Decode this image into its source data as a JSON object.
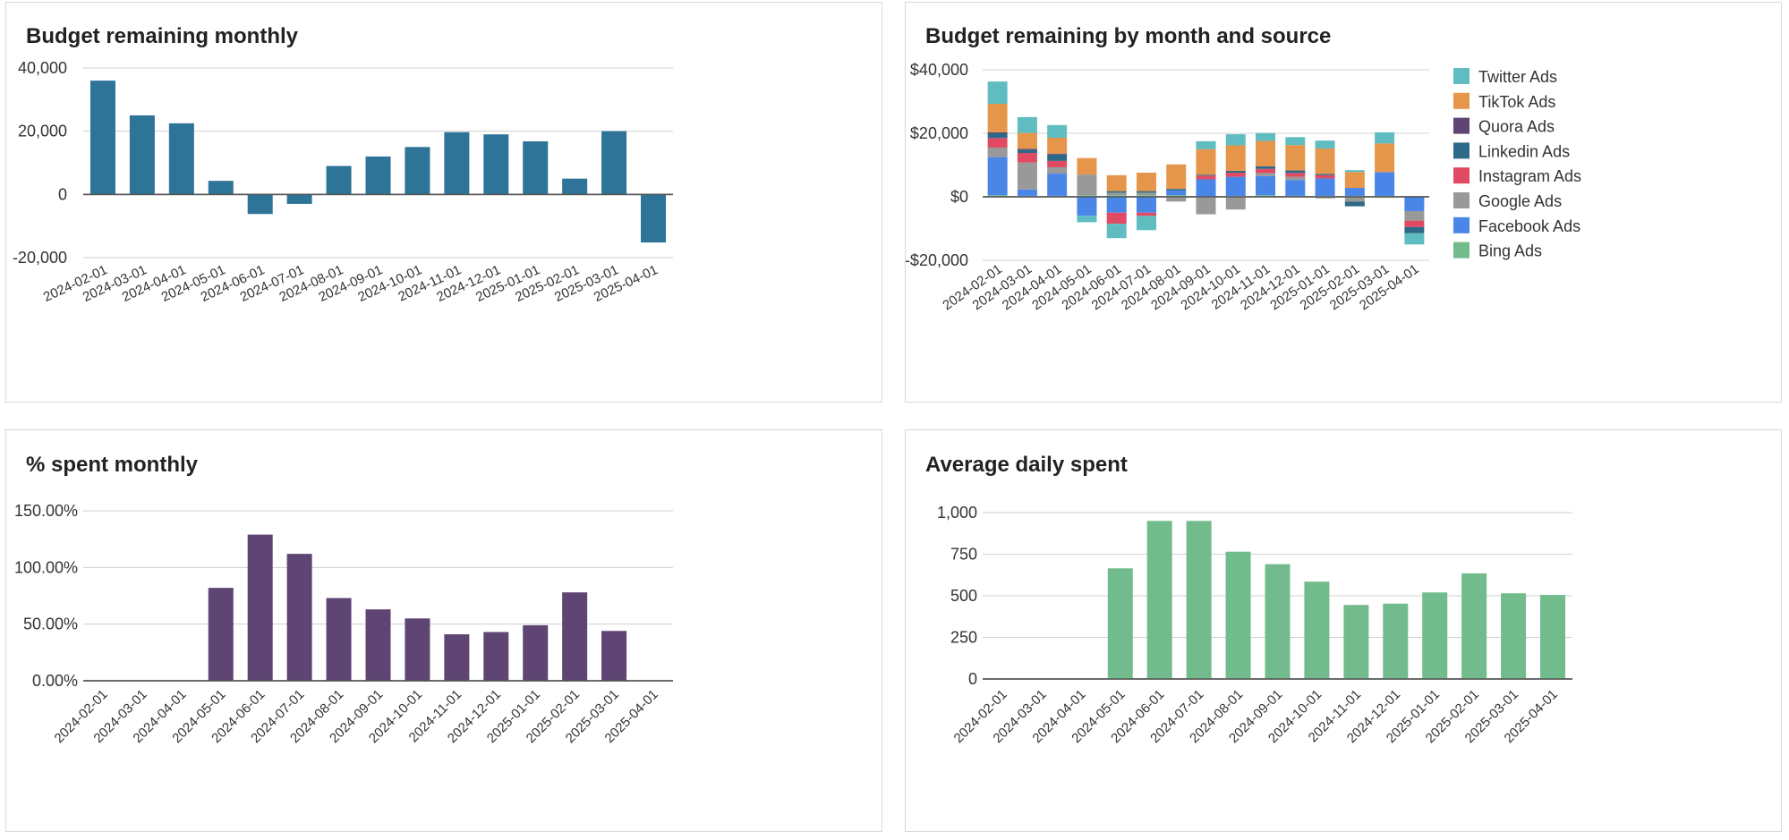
{
  "chart_data": [
    {
      "type": "bar",
      "title": "Budget remaining monthly",
      "categories": [
        "2024-02-01",
        "2024-03-01",
        "2024-04-01",
        "2024-05-01",
        "2024-06-01",
        "2024-07-01",
        "2024-08-01",
        "2024-09-01",
        "2024-10-01",
        "2024-11-01",
        "2024-12-01",
        "2025-01-01",
        "2025-02-01",
        "2025-03-01",
        "2025-04-01"
      ],
      "values": [
        36000,
        25000,
        22500,
        4300,
        -6200,
        -3000,
        9000,
        12000,
        15000,
        19700,
        19000,
        16800,
        5000,
        20000,
        -15200
      ],
      "yticks": [
        -20000,
        0,
        20000,
        40000
      ],
      "ytick_labels": [
        "-20,000",
        "0",
        "20,000",
        "40,000"
      ],
      "ylim": [
        -20000,
        40000
      ],
      "color": "#2e7398"
    },
    {
      "type": "bar",
      "stacked": true,
      "title": "Budget remaining by month and source",
      "categories": [
        "2024-02-01",
        "2024-03-01",
        "2024-04-01",
        "2024-05-01",
        "2024-06-01",
        "2024-07-01",
        "2024-08-01",
        "2024-09-01",
        "2024-10-01",
        "2024-11-01",
        "2024-12-01",
        "2025-01-01",
        "2025-02-01",
        "2025-03-01",
        "2025-04-01"
      ],
      "yticks": [
        -20000,
        0,
        20000,
        40000
      ],
      "ytick_labels": [
        "-$20,000",
        "$0",
        "$20,000",
        "$40,000"
      ],
      "ylim": [
        -20000,
        40000
      ],
      "series": [
        {
          "name": "Bing Ads",
          "color": "#71bb8c",
          "values": [
            500,
            300,
            300,
            500,
            500,
            500,
            500,
            0,
            300,
            500,
            300,
            300,
            300,
            300,
            0
          ]
        },
        {
          "name": "Facebook Ads",
          "color": "#4a86e8",
          "values": [
            12000,
            2000,
            7000,
            -6000,
            -5000,
            -5000,
            1500,
            5500,
            6000,
            6000,
            5000,
            5500,
            2500,
            7500,
            -4500
          ]
        },
        {
          "name": "Google Ads",
          "color": "#999999",
          "values": [
            3000,
            8500,
            2000,
            6500,
            800,
            800,
            -1500,
            -5500,
            -4000,
            1000,
            1000,
            -500,
            -1500,
            -300,
            -3000
          ]
        },
        {
          "name": "Instagram Ads",
          "color": "#e04b63",
          "values": [
            3000,
            3000,
            2000,
            0,
            -3500,
            -1000,
            0,
            1200,
            1300,
            1300,
            1200,
            1000,
            0,
            0,
            -2000
          ]
        },
        {
          "name": "Linkedin Ads",
          "color": "#2e6a87",
          "values": [
            1500,
            1000,
            2000,
            0,
            500,
            500,
            500,
            300,
            600,
            800,
            800,
            400,
            -1500,
            0,
            -2000
          ]
        },
        {
          "name": "Quora Ads",
          "color": "#5e4573",
          "values": [
            300,
            300,
            300,
            0,
            0,
            0,
            0,
            0,
            0,
            0,
            0,
            0,
            0,
            0,
            0
          ]
        },
        {
          "name": "TikTok Ads",
          "color": "#e6964a",
          "values": [
            9000,
            5000,
            5000,
            5200,
            5000,
            5800,
            7700,
            8000,
            8000,
            8000,
            8000,
            8000,
            5000,
            9000,
            0
          ]
        },
        {
          "name": "Twitter Ads",
          "color": "#5fbdc2",
          "values": [
            7000,
            5000,
            4000,
            -2000,
            -4500,
            -4500,
            0,
            2500,
            3500,
            2500,
            2500,
            2500,
            600,
            3500,
            -3500
          ]
        }
      ]
    },
    {
      "type": "bar",
      "title": "% spent monthly",
      "categories": [
        "2024-02-01",
        "2024-03-01",
        "2024-04-01",
        "2024-05-01",
        "2024-06-01",
        "2024-07-01",
        "2024-08-01",
        "2024-09-01",
        "2024-10-01",
        "2024-11-01",
        "2024-12-01",
        "2025-01-01",
        "2025-02-01",
        "2025-03-01",
        "2025-04-01"
      ],
      "values": [
        0,
        0,
        0,
        82,
        129,
        112,
        73,
        63,
        55,
        41,
        43,
        49,
        78,
        44,
        0
      ],
      "yticks": [
        0,
        50,
        100,
        150
      ],
      "ytick_labels": [
        "0.00%",
        "50.00%",
        "100.00%",
        "150.00%"
      ],
      "ylim": [
        0,
        150
      ],
      "color": "#5e4573"
    },
    {
      "type": "bar",
      "title": "Average daily spent",
      "categories": [
        "2024-02-01",
        "2024-03-01",
        "2024-04-01",
        "2024-05-01",
        "2024-06-01",
        "2024-07-01",
        "2024-08-01",
        "2024-09-01",
        "2024-10-01",
        "2024-11-01",
        "2024-12-01",
        "2025-01-01",
        "2025-02-01",
        "2025-03-01",
        "2025-04-01"
      ],
      "values": [
        0,
        0,
        0,
        665,
        950,
        950,
        765,
        690,
        585,
        445,
        453,
        520,
        635,
        515,
        505
      ],
      "yticks": [
        0,
        250,
        500,
        750,
        1000
      ],
      "ytick_labels": [
        "0",
        "250",
        "500",
        "750",
        "1,000"
      ],
      "ylim": [
        0,
        1000
      ],
      "color": "#71bb8c"
    }
  ]
}
